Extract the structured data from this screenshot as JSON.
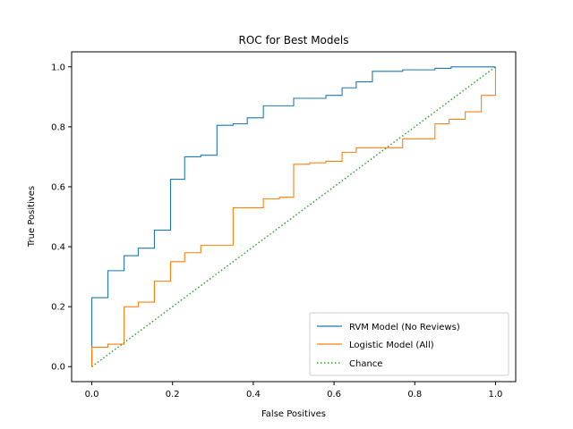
{
  "chart_data": {
    "type": "line",
    "title": "ROC for Best Models",
    "xlabel": "False Positives",
    "ylabel": "True Positives",
    "xlim": [
      -0.05,
      1.05
    ],
    "ylim": [
      -0.05,
      1.05
    ],
    "xticks": [
      0.0,
      0.2,
      0.4,
      0.6,
      0.8,
      1.0
    ],
    "yticks": [
      0.0,
      0.2,
      0.4,
      0.6,
      0.8,
      1.0
    ],
    "xtick_labels": [
      "0.0",
      "0.2",
      "0.4",
      "0.6",
      "0.8",
      "1.0"
    ],
    "ytick_labels": [
      "0.0",
      "0.2",
      "0.4",
      "0.6",
      "0.8",
      "1.0"
    ],
    "grid": false,
    "legend_position": "lower-right",
    "series": [
      {
        "name": "RVM Model (No Reviews)",
        "color": "#1f77b4",
        "style": "solid",
        "x": [
          0.0,
          0.0,
          0.04,
          0.04,
          0.08,
          0.08,
          0.115,
          0.115,
          0.155,
          0.155,
          0.195,
          0.195,
          0.23,
          0.23,
          0.27,
          0.27,
          0.31,
          0.31,
          0.35,
          0.35,
          0.385,
          0.385,
          0.425,
          0.425,
          0.5,
          0.5,
          0.58,
          0.58,
          0.62,
          0.62,
          0.655,
          0.655,
          0.695,
          0.695,
          0.77,
          0.77,
          0.85,
          0.85,
          0.89,
          0.89,
          1.0
        ],
        "y": [
          0.0,
          0.23,
          0.23,
          0.32,
          0.32,
          0.37,
          0.37,
          0.395,
          0.395,
          0.455,
          0.455,
          0.625,
          0.625,
          0.7,
          0.7,
          0.705,
          0.705,
          0.805,
          0.805,
          0.81,
          0.81,
          0.83,
          0.83,
          0.87,
          0.87,
          0.895,
          0.895,
          0.905,
          0.905,
          0.93,
          0.93,
          0.95,
          0.95,
          0.985,
          0.985,
          0.99,
          0.99,
          0.995,
          0.995,
          1.0,
          1.0
        ]
      },
      {
        "name": "Logistic Model (All)",
        "color": "#ff7f0e",
        "style": "solid",
        "x": [
          0.0,
          0.0,
          0.04,
          0.04,
          0.08,
          0.08,
          0.115,
          0.115,
          0.155,
          0.155,
          0.195,
          0.195,
          0.23,
          0.23,
          0.27,
          0.27,
          0.35,
          0.35,
          0.425,
          0.425,
          0.465,
          0.465,
          0.5,
          0.5,
          0.54,
          0.54,
          0.58,
          0.58,
          0.62,
          0.62,
          0.655,
          0.655,
          0.77,
          0.77,
          0.85,
          0.85,
          0.885,
          0.885,
          0.925,
          0.925,
          0.965,
          0.965,
          1.0,
          1.0
        ],
        "y": [
          0.0,
          0.065,
          0.065,
          0.075,
          0.075,
          0.2,
          0.2,
          0.215,
          0.215,
          0.285,
          0.285,
          0.35,
          0.35,
          0.38,
          0.38,
          0.405,
          0.405,
          0.53,
          0.53,
          0.56,
          0.56,
          0.565,
          0.565,
          0.675,
          0.675,
          0.68,
          0.68,
          0.685,
          0.685,
          0.715,
          0.715,
          0.73,
          0.73,
          0.76,
          0.76,
          0.81,
          0.81,
          0.825,
          0.825,
          0.85,
          0.85,
          0.905,
          0.905,
          1.0
        ]
      },
      {
        "name": "Chance",
        "color": "#2ca02c",
        "style": "dotted",
        "x": [
          0.0,
          1.0
        ],
        "y": [
          0.0,
          1.0
        ]
      }
    ]
  }
}
